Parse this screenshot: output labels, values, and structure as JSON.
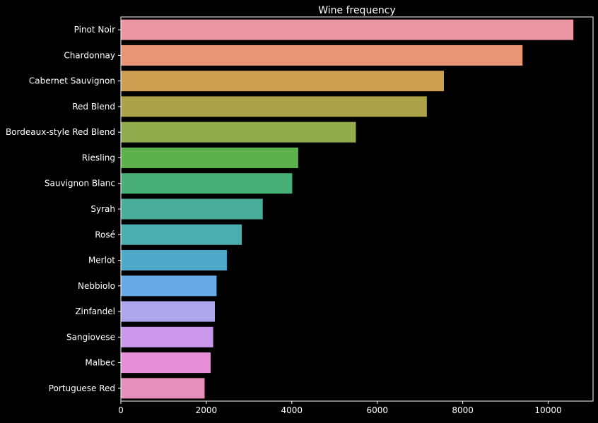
{
  "chart_data": {
    "type": "bar",
    "orientation": "horizontal",
    "title": "Wine frequency",
    "xlabel": "",
    "ylabel": "",
    "xlim": [
      0,
      11050
    ],
    "xticks": [
      0,
      2000,
      4000,
      6000,
      8000,
      10000
    ],
    "grid": false,
    "categories": [
      "Pinot Noir",
      "Chardonnay",
      "Cabernet Sauvignon",
      "Red Blend",
      "Bordeaux-style Red Blend",
      "Riesling",
      "Sauvignon Blanc",
      "Syrah",
      "Rosé",
      "Merlot",
      "Nebbiolo",
      "Zinfandel",
      "Sangiovese",
      "Malbec",
      "Portuguese Red"
    ],
    "values": [
      10590,
      9400,
      7560,
      7160,
      5500,
      4150,
      4010,
      3320,
      2830,
      2480,
      2240,
      2200,
      2160,
      2100,
      1960
    ],
    "colors": [
      "#ea96a3",
      "#e89676",
      "#cc9e4f",
      "#aba249",
      "#91aa4b",
      "#5eb04c",
      "#48af79",
      "#4aad99",
      "#4cadb0",
      "#4ea9c9",
      "#67aae6",
      "#ada6ed",
      "#cb97ea",
      "#e68ed8",
      "#e78fbc"
    ],
    "colors_frame": {
      "background": "#000000",
      "axis": "#ffffff",
      "text": "#ffffff"
    }
  }
}
